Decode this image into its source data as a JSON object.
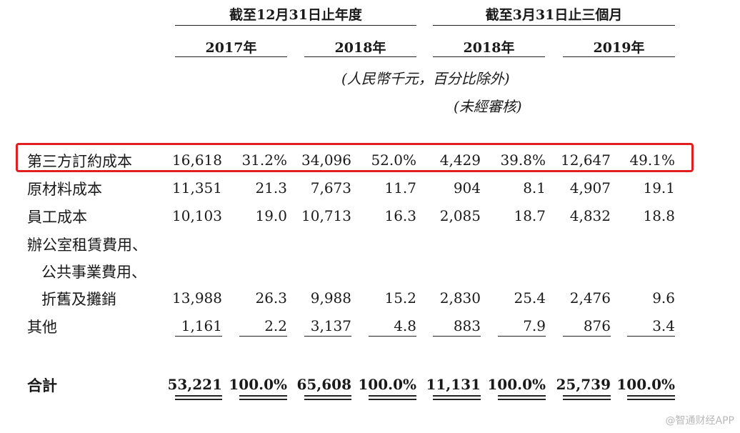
{
  "header": {
    "group1_title": "截至12月31日止年度",
    "group2_title": "截至3月31日止三個月",
    "years": [
      "2017年",
      "2018年",
      "2018年",
      "2019年"
    ],
    "unit_note": "(人民幣千元，百分比除外)",
    "audit_note": "(未經審核)"
  },
  "rows": [
    {
      "label": "第三方訂約成本",
      "values": [
        "16,618",
        "31.2%",
        "34,096",
        "52.0%",
        "4,429",
        "39.8%",
        "12,647",
        "49.1%"
      ]
    },
    {
      "label": "原材料成本",
      "values": [
        "11,351",
        "21.3",
        "7,673",
        "11.7",
        "904",
        "8.1",
        "4,907",
        "19.1"
      ]
    },
    {
      "label": "員工成本",
      "values": [
        "10,103",
        "19.0",
        "10,713",
        "16.3",
        "2,085",
        "18.7",
        "4,832",
        "18.8"
      ]
    },
    {
      "label_lines": [
        "辦公室租賃費用、",
        "公共事業費用、",
        "折舊及攤銷"
      ],
      "values": [
        "13,988",
        "26.3",
        "9,988",
        "15.2",
        "2,830",
        "25.4",
        "2,476",
        "9.6"
      ]
    },
    {
      "label": "其他",
      "values": [
        "1,161",
        "2.2",
        "3,137",
        "4.8",
        "883",
        "7.9",
        "876",
        "3.4"
      ]
    }
  ],
  "total": {
    "label": "合計",
    "values": [
      "53,221",
      "100.0%",
      "65,608",
      "100.0%",
      "11,131",
      "100.0%",
      "25,739",
      "100.0%"
    ]
  },
  "highlight_color": "#e02020",
  "watermark": "@智通财经APP"
}
